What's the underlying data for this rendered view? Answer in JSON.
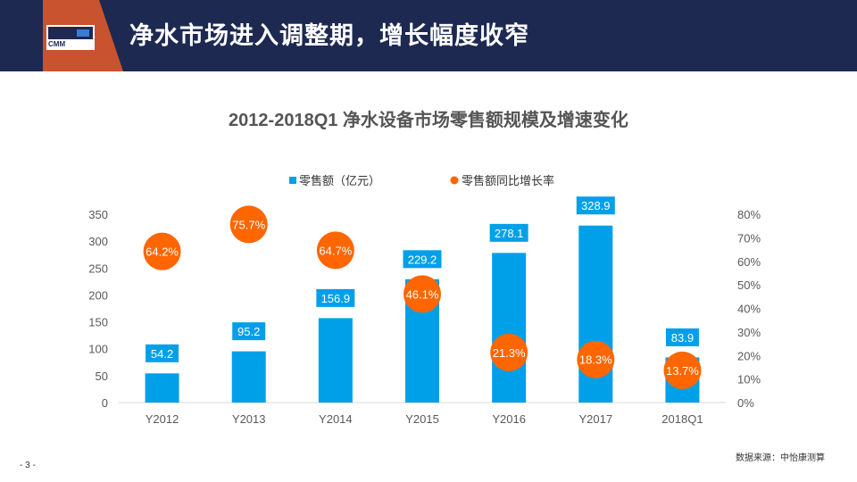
{
  "header": {
    "title": "净水市场进入调整期，增长幅度收窄",
    "logo_text": "CMM"
  },
  "chart_data": {
    "type": "bar",
    "title": "2012-2018Q1 净水设备市场零售额规模及增速变化",
    "categories": [
      "Y2012",
      "Y2013",
      "Y2014",
      "Y2015",
      "Y2016",
      "Y2017",
      "2018Q1"
    ],
    "series": [
      {
        "name": "零售额（亿元）",
        "type": "bar",
        "axis": "left",
        "values": [
          54.2,
          95.2,
          156.9,
          229.2,
          278.1,
          328.9,
          83.9
        ],
        "labels": [
          "54.2",
          "95.2",
          "156.9",
          "229.2",
          "278.1",
          "328.9",
          "83.9"
        ],
        "color": "#00a0e9"
      },
      {
        "name": "零售额同比增长率",
        "type": "scatter",
        "axis": "right",
        "values": [
          64.2,
          75.7,
          64.7,
          46.1,
          21.3,
          18.3,
          13.7
        ],
        "labels": [
          "64.2%",
          "75.7%",
          "64.7%",
          "46.1%",
          "21.3%",
          "18.3%",
          "13.7%"
        ],
        "color": "#ff6600"
      }
    ],
    "ylim_left": [
      0,
      350
    ],
    "ylim_right": [
      0,
      80
    ],
    "left_ticks": [
      "0",
      "50",
      "100",
      "150",
      "200",
      "250",
      "300",
      "350"
    ],
    "right_ticks": [
      "0%",
      "10%",
      "20%",
      "30%",
      "40%",
      "50%",
      "60%",
      "70%",
      "80%"
    ],
    "legend_position": "top-center"
  },
  "footer": {
    "page_number": "- 3 -",
    "source": "数据来源：中怡康测算"
  }
}
